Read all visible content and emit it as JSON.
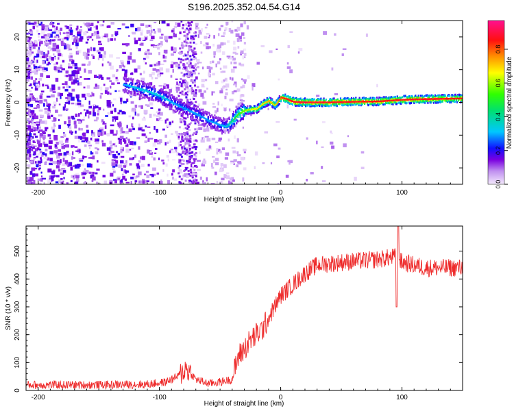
{
  "title": "S196.2025.352.04.54.G14",
  "colors": {
    "snr_line": "#ee2b2b",
    "axis": "#000000"
  },
  "chart_data": [
    {
      "type": "heatmap",
      "name": "spectrogram",
      "xlabel": "Height of straight line (km)",
      "ylabel": "Frequency (Hz)",
      "xlim": [
        -210,
        150
      ],
      "ylim": [
        -25,
        25
      ],
      "xticks": [
        -200,
        -100,
        0,
        100
      ],
      "yticks": [
        -20,
        -10,
        0,
        10,
        20
      ],
      "colorbar": {
        "label": "Normalized spectral amplitude",
        "range": [
          0,
          0.97
        ],
        "ticks": [
          0.0,
          0.2,
          0.4,
          0.6,
          0.8
        ]
      },
      "ridge": {
        "x": [
          -130,
          -115,
          -100,
          -85,
          -70,
          -60,
          -50,
          -45,
          -40,
          -35,
          -30,
          -25,
          -20,
          -15,
          -10,
          -5,
          0,
          5,
          10,
          20,
          40,
          60,
          80,
          100,
          120,
          150
        ],
        "y": [
          5.5,
          4.0,
          2.0,
          -1.0,
          -3.5,
          -5.5,
          -7.0,
          -7.5,
          -5.5,
          -3.5,
          -2.5,
          -2.2,
          -2.0,
          -0.5,
          0.5,
          -1.0,
          1.5,
          1.0,
          0.2,
          0.0,
          0.0,
          0.2,
          0.3,
          0.8,
          1.0,
          1.2
        ],
        "amplitude": [
          0.3,
          0.35,
          0.35,
          0.3,
          0.3,
          0.3,
          0.3,
          0.35,
          0.45,
          0.55,
          0.6,
          0.65,
          0.7,
          0.7,
          0.75,
          0.7,
          0.85,
          0.9,
          0.9,
          0.92,
          0.9,
          0.9,
          0.88,
          0.9,
          0.9,
          0.88
        ]
      }
    },
    {
      "type": "line",
      "name": "snr",
      "xlabel": "Height of straight line (km)",
      "ylabel": "SNR (10 * v/v)",
      "xlim": [
        -210,
        150
      ],
      "ylim": [
        0,
        590
      ],
      "xticks": [
        -200,
        -100,
        0,
        100
      ],
      "yticks": [
        0,
        100,
        200,
        300,
        400,
        500
      ],
      "envelope": {
        "x": [
          -210,
          -150,
          -110,
          -95,
          -85,
          -78,
          -70,
          -60,
          -50,
          -40,
          -35,
          -25,
          -15,
          -5,
          0,
          10,
          20,
          30,
          50,
          80,
          95,
          100,
          120,
          150
        ],
        "y": [
          20,
          20,
          22,
          30,
          50,
          80,
          40,
          25,
          30,
          40,
          120,
          180,
          220,
          300,
          340,
          380,
          420,
          450,
          460,
          470,
          480,
          460,
          440,
          440
        ]
      },
      "noise_amplitude": 25,
      "spike": {
        "x": 97,
        "peak": 590,
        "dip": 300
      }
    }
  ]
}
